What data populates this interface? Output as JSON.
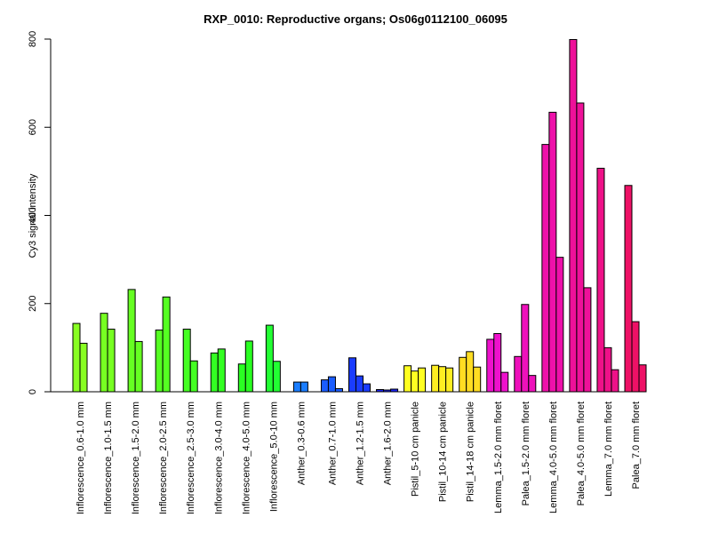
{
  "chart_data": {
    "type": "bar",
    "title": "RXP_0010: Reproductive organs; Os06g0112100_06095",
    "xlabel": "",
    "ylabel": "Cy3 signal intensity",
    "ylim": [
      0,
      800
    ],
    "yticks": [
      0,
      200,
      400,
      600,
      800
    ],
    "grid": false,
    "legend": "none",
    "groups": [
      {
        "label": "Inflorescence_0.6-1.0 mm",
        "values": [
          155,
          110
        ],
        "color": "#88ff22"
      },
      {
        "label": "Inflorescence_1.0-1.5 mm",
        "values": [
          178,
          142
        ],
        "color": "#77ff22"
      },
      {
        "label": "Inflorescence_1.5-2.0 mm",
        "values": [
          232,
          114
        ],
        "color": "#66ff22"
      },
      {
        "label": "Inflorescence_2.0-2.5 mm",
        "values": [
          140,
          215
        ],
        "color": "#55ff22"
      },
      {
        "label": "Inflorescence_2.5-3.0 mm",
        "values": [
          142,
          70
        ],
        "color": "#44ff22"
      },
      {
        "label": "Inflorescence_3.0-4.0 mm",
        "values": [
          88,
          97
        ],
        "color": "#33ff22"
      },
      {
        "label": "Inflorescence_4.0-5.0 mm",
        "values": [
          63,
          115
        ],
        "color": "#2aff22"
      },
      {
        "label": "Inflorescence_5.0-10 mm",
        "values": [
          151,
          69
        ],
        "color": "#22ff33"
      },
      {
        "label": "Anther_0.3-0.6 mm",
        "values": [
          22,
          22
        ],
        "color": "#1a7dff"
      },
      {
        "label": "Anther_0.7-1.0 mm",
        "values": [
          27,
          34,
          7
        ],
        "color": "#1a5cff"
      },
      {
        "label": "Anther_1.2-1.5 mm",
        "values": [
          77,
          36,
          18
        ],
        "color": "#1a3cff"
      },
      {
        "label": "Anther_1.6-2.0 mm",
        "values": [
          5,
          4,
          6
        ],
        "color": "#1a22ee"
      },
      {
        "label": "Pistil_5-10 cm panicle",
        "values": [
          59,
          47,
          54
        ],
        "color": "#ffff22"
      },
      {
        "label": "Pistil_10-14 cm panicle",
        "values": [
          60,
          57,
          54
        ],
        "color": "#ffee22"
      },
      {
        "label": "Pistil_14-18 cm panicle",
        "values": [
          78,
          91,
          56
        ],
        "color": "#ffdd22"
      },
      {
        "label": "Lemma_1.5-2.0 mm floret",
        "values": [
          119,
          132,
          44
        ],
        "color": "#ee11cc"
      },
      {
        "label": "Palea_1.5-2.0 mm floret",
        "values": [
          80,
          198,
          37
        ],
        "color": "#ee11bb"
      },
      {
        "label": "Lemma_4.0-5.0 mm floret",
        "values": [
          561,
          634,
          305
        ],
        "color": "#ee11aa"
      },
      {
        "label": "Palea_4.0-5.0 mm floret",
        "values": [
          799,
          655,
          236
        ],
        "color": "#ee1199"
      },
      {
        "label": "Lemma_7.0 mm floret",
        "values": [
          507,
          100,
          50
        ],
        "color": "#ee1188"
      },
      {
        "label": "Palea_7.0 mm floret",
        "values": [
          468,
          159,
          61
        ],
        "color": "#ee1166"
      }
    ]
  }
}
